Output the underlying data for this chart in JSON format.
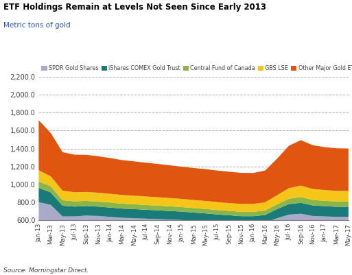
{
  "title": "ETF Holdings Remain at Levels Not Seen Since Early 2013",
  "subtitle": "Metric tons of gold",
  "source": "Source: Morningstar Direct.",
  "colors": {
    "SPDR Gold Shares": "#a9a9c9",
    "iShares COMEX Gold Trust": "#1a7a78",
    "Central Fund of Canada": "#8ab54a",
    "GBS LSE": "#f5c518",
    "Other Major Gold ETFs": "#e05510"
  },
  "legend_order": [
    "SPDR Gold Shares",
    "iShares COMEX Gold Trust",
    "Central Fund of Canada",
    "GBS LSE",
    "Other Major Gold ETFs"
  ],
  "x_labels": [
    "Jan-13",
    "Mar-13",
    "May-13",
    "Jul-13",
    "Sep-13",
    "Nov-13",
    "Jan-14",
    "Mar-14",
    "May-14",
    "Jul-14",
    "Sep-14",
    "Nov-14",
    "Jan-15",
    "Mar-15",
    "May-15",
    "Jul-15",
    "Sep-15",
    "Nov-15",
    "Jan-16",
    "Mar-16",
    "May-16",
    "Jul-16",
    "Sep-16",
    "Nov-16",
    "Jan-17",
    "Mar-17",
    "May-17"
  ],
  "ylim": [
    600,
    2200
  ],
  "yticks": [
    600,
    800,
    1000,
    1200,
    1400,
    1600,
    1800,
    2000,
    2200
  ],
  "data": {
    "SPDR Gold Shares": [
      800,
      770,
      640,
      640,
      650,
      645,
      635,
      625,
      620,
      615,
      610,
      605,
      600,
      592,
      585,
      575,
      568,
      560,
      560,
      570,
      620,
      660,
      670,
      645,
      640,
      635,
      635
    ],
    "iShares COMEX Gold Trust": [
      160,
      140,
      120,
      110,
      107,
      105,
      104,
      103,
      102,
      100,
      98,
      96,
      94,
      91,
      89,
      87,
      85,
      83,
      83,
      86,
      102,
      118,
      123,
      118,
      115,
      113,
      113
    ],
    "Central Fund of Canada": [
      72,
      68,
      62,
      59,
      57,
      56,
      56,
      55,
      54,
      53,
      53,
      52,
      51,
      51,
      50,
      50,
      49,
      49,
      49,
      50,
      53,
      60,
      64,
      62,
      60,
      59,
      58
    ],
    "GBS LSE": [
      125,
      112,
      107,
      102,
      100,
      99,
      98,
      97,
      96,
      95,
      94,
      93,
      91,
      90,
      89,
      88,
      88,
      87,
      88,
      92,
      102,
      118,
      128,
      122,
      120,
      119,
      118
    ],
    "Other Major Gold ETFs": [
      560,
      485,
      430,
      420,
      415,
      408,
      400,
      390,
      384,
      378,
      372,
      366,
      360,
      358,
      356,
      353,
      350,
      348,
      346,
      355,
      408,
      475,
      508,
      490,
      480,
      476,
      476
    ]
  }
}
